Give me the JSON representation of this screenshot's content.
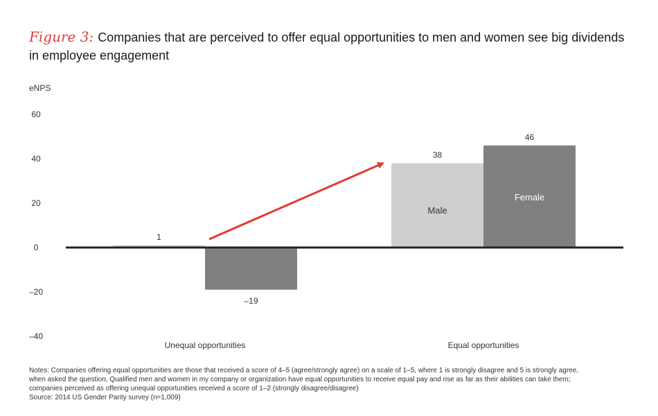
{
  "title": {
    "figure_label": "Figure 3:",
    "line1": "Companies that are perceived to offer equal opportunities to men and women see big dividends",
    "line2": "in employee engagement"
  },
  "chart_data": {
    "type": "bar",
    "ylabel": "eNPS",
    "ylim": [
      -40,
      60
    ],
    "yticks": [
      60,
      40,
      20,
      0,
      -20,
      -40
    ],
    "ytick_labels": [
      "60",
      "40",
      "20",
      "0",
      "–20",
      "–40"
    ],
    "categories": [
      "Unequal opportunities",
      "Equal opportunities"
    ],
    "series": [
      {
        "name": "Male",
        "values": [
          1,
          38
        ],
        "color": "#cfcfcf"
      },
      {
        "name": "Female",
        "values": [
          -19,
          46
        ],
        "color": "#808080"
      }
    ],
    "value_labels": [
      [
        "1",
        "38"
      ],
      [
        "–19",
        "46"
      ]
    ],
    "annotation": "arrow",
    "annotation_color": "#e53935",
    "grid": false
  },
  "notes": [
    "Notes: Companies offering equal opportunities are those that received a score of 4–5 (agree/strongly agree) on a scale of 1–5, where 1 is strongly disagree and 5 is strongly agree,",
    "when asked the question, Qualified men and women in my company or organization have equal opportunities to receive equal pay and rise as far as their abilities can take them;",
    "companies perceived as offering unequal opportunities received a score of 1–2 (strongly disagree/disagree)",
    "Source: 2014 US Gender Parity survey (n=1,009)"
  ]
}
